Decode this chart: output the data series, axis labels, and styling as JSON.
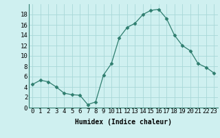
{
  "x": [
    0,
    1,
    2,
    3,
    4,
    5,
    6,
    7,
    8,
    9,
    10,
    11,
    12,
    13,
    14,
    15,
    16,
    17,
    18,
    19,
    20,
    21,
    22,
    23
  ],
  "y": [
    4.5,
    5.3,
    5.0,
    4.0,
    2.8,
    2.5,
    2.4,
    0.6,
    1.1,
    6.3,
    8.5,
    13.5,
    15.5,
    16.3,
    18.0,
    18.8,
    19.0,
    17.2,
    14.0,
    12.0,
    11.0,
    8.5,
    7.8,
    6.7
  ],
  "line_color": "#2e7d6e",
  "marker": "D",
  "marker_size": 2.5,
  "bg_color": "#cff0f0",
  "grid_color": "#a8d8d8",
  "xlabel": "Humidex (Indice chaleur)",
  "ylim": [
    0,
    20
  ],
  "xlim": [
    -0.5,
    23.5
  ],
  "yticks": [
    0,
    2,
    4,
    6,
    8,
    10,
    12,
    14,
    16,
    18
  ],
  "xticks": [
    0,
    1,
    2,
    3,
    4,
    5,
    6,
    7,
    8,
    9,
    10,
    11,
    12,
    13,
    14,
    15,
    16,
    17,
    18,
    19,
    20,
    21,
    22,
    23
  ],
  "xlabel_fontsize": 7,
  "tick_fontsize": 6.5
}
